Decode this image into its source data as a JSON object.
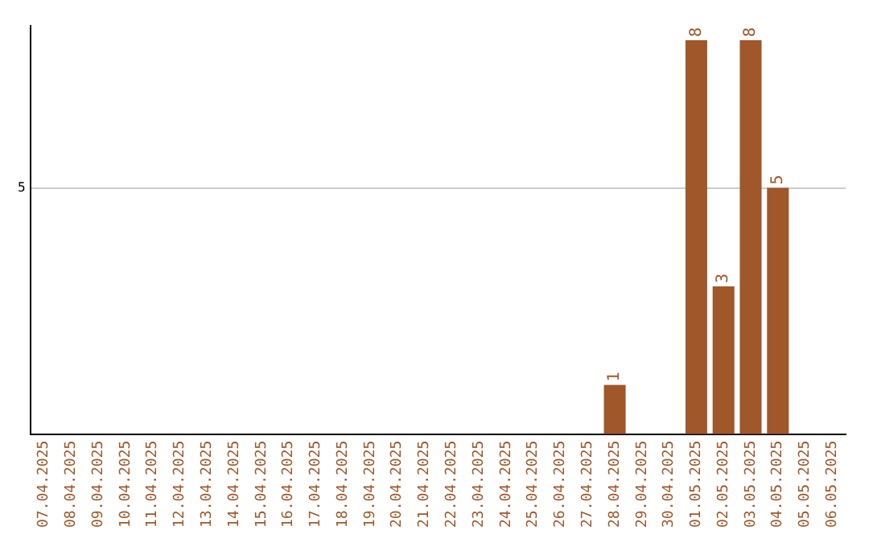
{
  "chart_data": {
    "type": "bar",
    "categories": [
      "07.04.2025",
      "08.04.2025",
      "09.04.2025",
      "10.04.2025",
      "11.04.2025",
      "12.04.2025",
      "13.04.2025",
      "14.04.2025",
      "15.04.2025",
      "16.04.2025",
      "17.04.2025",
      "18.04.2025",
      "19.04.2025",
      "20.04.2025",
      "21.04.2025",
      "22.04.2025",
      "23.04.2025",
      "24.04.2025",
      "25.04.2025",
      "26.04.2025",
      "27.04.2025",
      "28.04.2025",
      "29.04.2025",
      "30.04.2025",
      "01.05.2025",
      "02.05.2025",
      "03.05.2025",
      "04.05.2025",
      "05.05.2025",
      "06.05.2025"
    ],
    "values": [
      null,
      null,
      null,
      null,
      null,
      null,
      null,
      null,
      null,
      null,
      null,
      null,
      null,
      null,
      null,
      null,
      null,
      null,
      null,
      null,
      null,
      1,
      null,
      null,
      8,
      3,
      8,
      5,
      null,
      null
    ],
    "data_labels": true,
    "color": "#a0572a",
    "ylim": [
      0,
      8.3
    ],
    "yticks": [
      5
    ],
    "grid": "y",
    "legend": false
  }
}
